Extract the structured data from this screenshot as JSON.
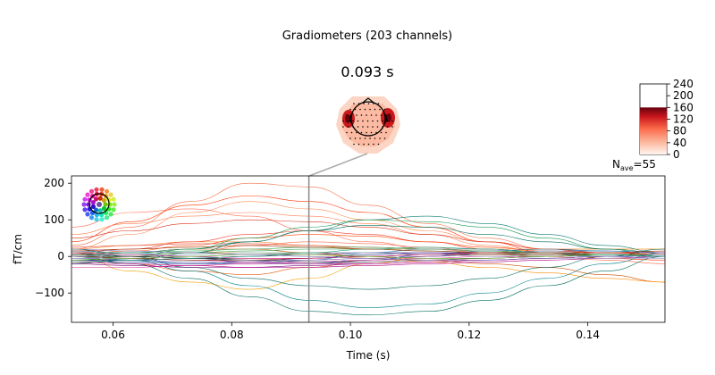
{
  "figure": {
    "suptitle": "Gradiometers (203 channels)",
    "time_label": "0.093 s",
    "nave_label": "N",
    "nave_sub": "ave",
    "nave_value": "=55"
  },
  "colorbar": {
    "ticks": [
      "240",
      "200",
      "160",
      "120",
      "80",
      "40",
      "0"
    ],
    "range": [
      0,
      240
    ],
    "fill_max": 160,
    "colors": [
      "#fff5f0",
      "#fcbba1",
      "#fb6a4a",
      "#cb181d",
      "#67000d"
    ]
  },
  "topomap": {
    "head_color": "#000000",
    "sensor_color": "#000000",
    "field_color": "#de2d26"
  },
  "chart_data": {
    "type": "line",
    "title": "",
    "xlabel": "Time (s)",
    "ylabel": "fT/cm",
    "xlim": [
      0.053,
      0.153
    ],
    "ylim": [
      -180,
      220
    ],
    "xticks": [
      0.06,
      0.08,
      0.1,
      0.12,
      0.14
    ],
    "xtick_labels": [
      "0.06",
      "0.08",
      "0.10",
      "0.12",
      "0.14"
    ],
    "yticks": [
      -100,
      0,
      100,
      200
    ],
    "ytick_labels": [
      "−100",
      "0",
      "100",
      "200"
    ],
    "cursor_time": 0.093,
    "grid": false,
    "legend": "none",
    "channel_count": 203,
    "x": [
      0.053,
      0.063,
      0.073,
      0.083,
      0.093,
      0.103,
      0.113,
      0.123,
      0.133,
      0.143,
      0.153
    ],
    "series": [
      {
        "color": "#f46d43",
        "values": [
          30,
          80,
          150,
          200,
          190,
          140,
          90,
          50,
          20,
          5,
          0
        ]
      },
      {
        "color": "#ff3300",
        "values": [
          40,
          95,
          140,
          165,
          150,
          120,
          80,
          40,
          10,
          -5,
          -10
        ]
      },
      {
        "color": "#fc8d59",
        "values": [
          20,
          60,
          120,
          150,
          130,
          100,
          70,
          40,
          20,
          10,
          10
        ]
      },
      {
        "color": "#ff6e54",
        "values": [
          80,
          120,
          130,
          110,
          70,
          40,
          20,
          10,
          10,
          10,
          10
        ]
      },
      {
        "color": "#ff7f50",
        "values": [
          60,
          90,
          110,
          120,
          110,
          90,
          60,
          30,
          10,
          0,
          0
        ]
      },
      {
        "color": "#d7301f",
        "values": [
          50,
          70,
          90,
          100,
          95,
          80,
          60,
          40,
          20,
          10,
          5
        ]
      },
      {
        "color": "#f0a000",
        "values": [
          10,
          -40,
          -70,
          -90,
          -60,
          -20,
          0,
          10,
          20,
          20,
          20
        ]
      },
      {
        "color": "#e6550d",
        "values": [
          0,
          -20,
          -40,
          -50,
          -30,
          -10,
          0,
          10,
          10,
          10,
          10
        ]
      },
      {
        "color": "#fd8d3c",
        "values": [
          20,
          30,
          40,
          40,
          30,
          20,
          20,
          20,
          20,
          20,
          20
        ]
      },
      {
        "color": "#ef3b2c",
        "values": [
          10,
          20,
          40,
          60,
          70,
          60,
          40,
          20,
          10,
          0,
          0
        ]
      },
      {
        "color": "#ff4500",
        "values": [
          5,
          15,
          30,
          50,
          60,
          55,
          40,
          25,
          15,
          10,
          5
        ]
      },
      {
        "color": "#fb6a4a",
        "values": [
          -20,
          -10,
          10,
          30,
          40,
          35,
          25,
          10,
          0,
          -10,
          -20
        ]
      },
      {
        "color": "#cc4c02",
        "values": [
          0,
          10,
          20,
          20,
          10,
          0,
          -10,
          -20,
          -30,
          -50,
          -70
        ]
      },
      {
        "color": "#ff8c00",
        "values": [
          0,
          5,
          10,
          10,
          5,
          -5,
          -15,
          -30,
          -45,
          -60,
          -70
        ]
      },
      {
        "color": "#e34a33",
        "values": [
          25,
          30,
          35,
          35,
          30,
          25,
          20,
          15,
          10,
          5,
          0
        ]
      },
      {
        "color": "#006d5b",
        "values": [
          0,
          -20,
          -60,
          -110,
          -150,
          -160,
          -150,
          -120,
          -80,
          -40,
          0
        ]
      },
      {
        "color": "#02818a",
        "values": [
          10,
          -10,
          -40,
          -80,
          -120,
          -140,
          -130,
          -100,
          -60,
          -20,
          10
        ]
      },
      {
        "color": "#00695c",
        "values": [
          20,
          0,
          -30,
          -60,
          -80,
          -90,
          -80,
          -60,
          -30,
          0,
          20
        ]
      },
      {
        "color": "#0d7d6f",
        "values": [
          0,
          10,
          20,
          40,
          70,
          100,
          110,
          90,
          60,
          30,
          10
        ]
      },
      {
        "color": "#1a9850",
        "values": [
          -10,
          0,
          20,
          50,
          80,
          100,
          95,
          80,
          50,
          20,
          0
        ]
      },
      {
        "color": "#016c59",
        "values": [
          -20,
          -10,
          10,
          40,
          70,
          85,
          80,
          60,
          40,
          20,
          10
        ]
      },
      {
        "color": "#2c7fb8",
        "values": [
          0,
          -10,
          -20,
          -20,
          -10,
          10,
          20,
          20,
          10,
          0,
          0
        ]
      },
      {
        "color": "#225ea8",
        "values": [
          10,
          5,
          -5,
          -15,
          -20,
          -10,
          5,
          15,
          20,
          15,
          10
        ]
      },
      {
        "color": "#253494",
        "values": [
          -10,
          -15,
          -20,
          -15,
          -5,
          5,
          10,
          10,
          5,
          0,
          -5
        ]
      },
      {
        "color": "#3182bd",
        "values": [
          15,
          10,
          0,
          -10,
          -15,
          -10,
          0,
          10,
          15,
          15,
          10
        ]
      },
      {
        "color": "#6a51a3",
        "values": [
          -5,
          -10,
          -15,
          -20,
          -20,
          -15,
          -10,
          -5,
          0,
          5,
          5
        ]
      },
      {
        "color": "#7a0177",
        "values": [
          -20,
          -25,
          -30,
          -30,
          -25,
          -20,
          -15,
          -10,
          -5,
          0,
          0
        ]
      },
      {
        "color": "#ae017e",
        "values": [
          -15,
          -20,
          -25,
          -30,
          -30,
          -25,
          -20,
          -15,
          -10,
          -5,
          0
        ]
      },
      {
        "color": "#c51b8a",
        "values": [
          0,
          -5,
          -10,
          -15,
          -20,
          -20,
          -15,
          -10,
          -5,
          0,
          0
        ]
      },
      {
        "color": "#dd3497",
        "values": [
          -30,
          -30,
          -25,
          -20,
          -15,
          -10,
          -5,
          0,
          0,
          0,
          0
        ]
      },
      {
        "color": "#8856a7",
        "values": [
          5,
          0,
          -5,
          -10,
          -10,
          -5,
          0,
          5,
          5,
          5,
          5
        ]
      },
      {
        "color": "#54278f",
        "values": [
          -10,
          -10,
          -5,
          0,
          5,
          10,
          10,
          5,
          0,
          0,
          0
        ]
      },
      {
        "color": "#31a354",
        "values": [
          5,
          5,
          10,
          15,
          20,
          20,
          15,
          10,
          5,
          0,
          0
        ]
      },
      {
        "color": "#78c679",
        "values": [
          -5,
          0,
          5,
          10,
          10,
          10,
          5,
          5,
          0,
          0,
          0
        ]
      },
      {
        "color": "#41ab5d",
        "values": [
          10,
          10,
          15,
          20,
          25,
          25,
          20,
          15,
          10,
          5,
          5
        ]
      },
      {
        "color": "#8c2d04",
        "values": [
          0,
          -5,
          -10,
          -10,
          -5,
          0,
          5,
          5,
          5,
          5,
          5
        ]
      },
      {
        "color": "#525252",
        "values": [
          0,
          0,
          -5,
          -10,
          -15,
          -15,
          -10,
          -5,
          0,
          5,
          5
        ]
      },
      {
        "color": "#252525",
        "values": [
          5,
          0,
          -5,
          -5,
          -5,
          0,
          5,
          10,
          10,
          5,
          0
        ]
      },
      {
        "color": "#a6bddb",
        "values": [
          0,
          5,
          5,
          10,
          5,
          0,
          -5,
          -5,
          0,
          0,
          0
        ]
      },
      {
        "color": "#9e9ac8",
        "values": [
          -5,
          -5,
          0,
          5,
          10,
          10,
          5,
          0,
          -5,
          -5,
          -5
        ]
      },
      {
        "color": "#e7298a",
        "values": [
          10,
          5,
          0,
          -5,
          -5,
          0,
          5,
          10,
          10,
          10,
          10
        ]
      },
      {
        "color": "#66a61e",
        "values": [
          -10,
          -5,
          0,
          5,
          5,
          0,
          -5,
          -5,
          0,
          5,
          5
        ]
      },
      {
        "color": "#7570b3",
        "values": [
          20,
          15,
          10,
          5,
          0,
          -5,
          -10,
          -10,
          -5,
          0,
          5
        ]
      },
      {
        "color": "#1b9e77",
        "values": [
          -15,
          -10,
          -5,
          0,
          10,
          20,
          25,
          20,
          10,
          5,
          0
        ]
      },
      {
        "color": "#993404",
        "values": [
          15,
          20,
          25,
          30,
          25,
          20,
          15,
          10,
          10,
          10,
          15
        ]
      }
    ]
  }
}
